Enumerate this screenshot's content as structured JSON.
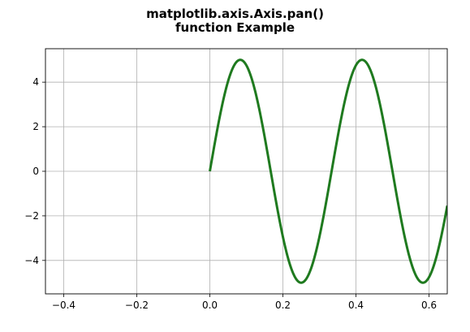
{
  "title_lines": [
    "matplotlib.axis.Axis.pan()",
    "function Example"
  ],
  "chart_data": {
    "type": "line",
    "title": "matplotlib.axis.Axis.pan()\nfunction Example",
    "xlabel": "",
    "ylabel": "",
    "xlim": [
      -0.45,
      0.65
    ],
    "ylim": [
      -5.5,
      5.5
    ],
    "grid": true,
    "x_ticks": [
      -0.4,
      -0.2,
      0.0,
      0.2,
      0.4,
      0.6
    ],
    "x_tick_labels": [
      "−0.4",
      "−0.2",
      "0.0",
      "0.2",
      "0.4",
      "0.6"
    ],
    "y_ticks": [
      4,
      2,
      0,
      -2,
      -4
    ],
    "y_tick_labels": [
      "4",
      "2",
      "0",
      "−2",
      "−4"
    ],
    "series": [
      {
        "color": "#1f7a1f",
        "function": "y = 5 * sin(2 * pi * 3 * x)",
        "x": [
          0.0,
          0.0833,
          0.1667,
          0.25,
          0.3333,
          0.4167,
          0.5,
          0.5833,
          0.65
        ],
        "y": [
          0.0,
          5.0,
          0.0,
          -5.0,
          0.0,
          5.0,
          0.0,
          -5.0,
          -1.49
        ]
      }
    ]
  }
}
